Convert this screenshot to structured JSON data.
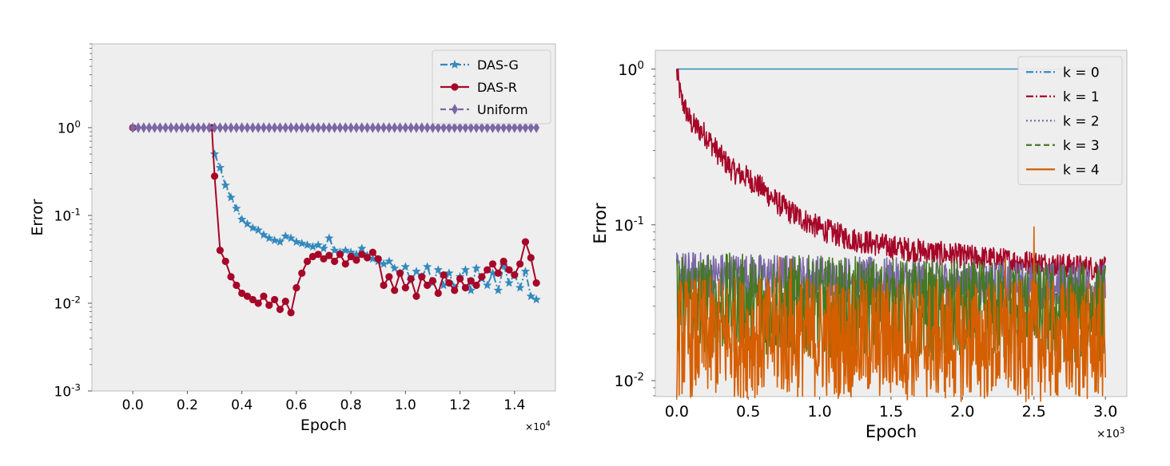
{
  "chart_data": [
    {
      "type": "line",
      "xlabel": "Epoch",
      "ylabel": "Error",
      "x_multiplier_label": "×10",
      "x_multiplier_exp": "4",
      "xlim": [
        -1500,
        15500
      ],
      "yscale": "log",
      "ylim": [
        0.001,
        9
      ],
      "x_ticks": [
        0,
        2000,
        4000,
        6000,
        8000,
        10000,
        12000,
        14000
      ],
      "x_tick_labels": [
        "0.0",
        "0.2",
        "0.4",
        "0.6",
        "0.8",
        "1.0",
        "1.2",
        "1.4"
      ],
      "y_ticks": [
        1,
        0.1,
        0.01,
        0.001
      ],
      "y_tick_bases": [
        "10",
        "10",
        "10",
        "10"
      ],
      "y_tick_exps": [
        "0",
        "-1",
        "-2",
        "-3"
      ],
      "legend_position": "top-right",
      "grid": false,
      "series": [
        {
          "name": "DAS-G",
          "color": "#348abd",
          "marker": "star",
          "linestyle": "dash-dot",
          "x": [
            3000,
            3200,
            3400,
            3600,
            3800,
            4000,
            4200,
            4400,
            4600,
            4800,
            5000,
            5200,
            5400,
            5600,
            5800,
            6000,
            6200,
            6400,
            6600,
            6800,
            7000,
            7200,
            7400,
            7600,
            7800,
            8000,
            8200,
            8400,
            8600,
            8800,
            9000,
            9200,
            9400,
            9600,
            9800,
            10000,
            10200,
            10400,
            10600,
            10800,
            11000,
            11200,
            11400,
            11600,
            11800,
            12000,
            12200,
            12400,
            12600,
            12800,
            13000,
            13200,
            13400,
            13600,
            13800,
            14000,
            14200,
            14400,
            14600,
            14800
          ],
          "values": [
            0.5,
            0.35,
            0.22,
            0.16,
            0.12,
            0.09,
            0.08,
            0.072,
            0.068,
            0.06,
            0.055,
            0.052,
            0.05,
            0.058,
            0.055,
            0.05,
            0.048,
            0.046,
            0.044,
            0.046,
            0.042,
            0.055,
            0.04,
            0.038,
            0.04,
            0.038,
            0.036,
            0.042,
            0.035,
            0.032,
            0.03,
            0.028,
            0.03,
            0.025,
            0.022,
            0.026,
            0.018,
            0.023,
            0.02,
            0.026,
            0.017,
            0.024,
            0.016,
            0.022,
            0.015,
            0.02,
            0.024,
            0.014,
            0.025,
            0.019,
            0.016,
            0.022,
            0.014,
            0.027,
            0.017,
            0.021,
            0.015,
            0.023,
            0.012,
            0.011
          ]
        },
        {
          "name": "DAS-R",
          "color": "#a60628",
          "marker": "circle",
          "linestyle": "solid",
          "x": [
            0,
            2900,
            3000,
            3200,
            3400,
            3600,
            3800,
            4000,
            4200,
            4400,
            4600,
            4800,
            5000,
            5200,
            5400,
            5600,
            5800,
            6000,
            6200,
            6400,
            6600,
            6800,
            7000,
            7200,
            7400,
            7600,
            7800,
            8000,
            8200,
            8400,
            8600,
            8800,
            9000,
            9200,
            9400,
            9600,
            9800,
            10000,
            10200,
            10400,
            10600,
            10800,
            11000,
            11200,
            11400,
            11600,
            11800,
            12000,
            12200,
            12400,
            12600,
            12800,
            13000,
            13200,
            13400,
            13600,
            13800,
            14000,
            14200,
            14400,
            14600,
            14800
          ],
          "values": [
            1.0,
            1.0,
            0.28,
            0.04,
            0.03,
            0.02,
            0.016,
            0.013,
            0.012,
            0.011,
            0.01,
            0.012,
            0.0095,
            0.011,
            0.0085,
            0.0105,
            0.0078,
            0.015,
            0.022,
            0.03,
            0.034,
            0.036,
            0.032,
            0.035,
            0.03,
            0.036,
            0.028,
            0.034,
            0.031,
            0.036,
            0.033,
            0.038,
            0.032,
            0.016,
            0.02,
            0.014,
            0.022,
            0.015,
            0.019,
            0.012,
            0.02,
            0.016,
            0.018,
            0.013,
            0.021,
            0.017,
            0.014,
            0.019,
            0.015,
            0.018,
            0.016,
            0.02,
            0.024,
            0.028,
            0.022,
            0.03,
            0.024,
            0.021,
            0.028,
            0.05,
            0.033,
            0.017
          ]
        },
        {
          "name": "Uniform",
          "color": "#7a68a6",
          "marker": "diamond",
          "linestyle": "dashed",
          "x_start": 0,
          "x_end": 14800,
          "x_step": 200,
          "constant_value": 1.0
        }
      ]
    },
    {
      "type": "line",
      "xlabel": "Epoch",
      "ylabel": "Error",
      "x_multiplier_label": "×10",
      "x_multiplier_exp": "3",
      "xlim": [
        -150,
        3150
      ],
      "yscale": "log",
      "ylim": [
        0.0079,
        1.32
      ],
      "x_ticks": [
        0,
        500,
        1000,
        1500,
        2000,
        2500,
        3000
      ],
      "x_tick_labels": [
        "0.0",
        "0.5",
        "1.0",
        "1.5",
        "2.0",
        "2.5",
        "3.0"
      ],
      "y_ticks": [
        1,
        0.1,
        0.01
      ],
      "y_tick_bases": [
        "10",
        "10",
        "10"
      ],
      "y_tick_exps": [
        "0",
        "-1",
        "-2"
      ],
      "legend_position": "top-right",
      "grid": false,
      "series": [
        {
          "name": "k = 0",
          "color": "#348abd",
          "linestyle": "dash-dot-dot",
          "trend": [
            [
              0,
              1.0
            ],
            [
              3000,
              1.0
            ]
          ],
          "noise": 0
        },
        {
          "name": "k = 1",
          "color": "#a60628",
          "linestyle": "dash-dot",
          "trend": [
            [
              0,
              0.95
            ],
            [
              30,
              0.65
            ],
            [
              100,
              0.45
            ],
            [
              200,
              0.38
            ],
            [
              300,
              0.28
            ],
            [
              400,
              0.22
            ],
            [
              500,
              0.2
            ],
            [
              600,
              0.17
            ],
            [
              700,
              0.14
            ],
            [
              800,
              0.12
            ],
            [
              1000,
              0.095
            ],
            [
              1200,
              0.082
            ],
            [
              1500,
              0.072
            ],
            [
              2000,
              0.063
            ],
            [
              2500,
              0.057
            ],
            [
              3000,
              0.052
            ]
          ],
          "noise": 0.18
        },
        {
          "name": "k = 2",
          "color": "#7a68a6",
          "linestyle": "dotted",
          "trend": [
            [
              0,
              0.048
            ],
            [
              1000,
              0.045
            ],
            [
              2000,
              0.042
            ],
            [
              3000,
              0.04
            ]
          ],
          "noise": 0.35
        },
        {
          "name": "k = 3",
          "color": "#467821",
          "linestyle": "dashed",
          "trend": [
            [
              0,
              0.032
            ],
            [
              1000,
              0.03
            ],
            [
              2000,
              0.028
            ],
            [
              3000,
              0.027
            ]
          ],
          "noise": 0.75
        },
        {
          "name": "k = 4",
          "color": "#d55e00",
          "linestyle": "solid",
          "trend": [
            [
              0,
              0.019
            ],
            [
              1000,
              0.019
            ],
            [
              2000,
              0.018
            ],
            [
              3000,
              0.018
            ]
          ],
          "noise": 0.9,
          "spikes": [
            [
              720,
              0.062
            ],
            [
              800,
              0.06
            ],
            [
              2500,
              0.097
            ],
            [
              2300,
              0.06
            ]
          ]
        }
      ]
    }
  ]
}
